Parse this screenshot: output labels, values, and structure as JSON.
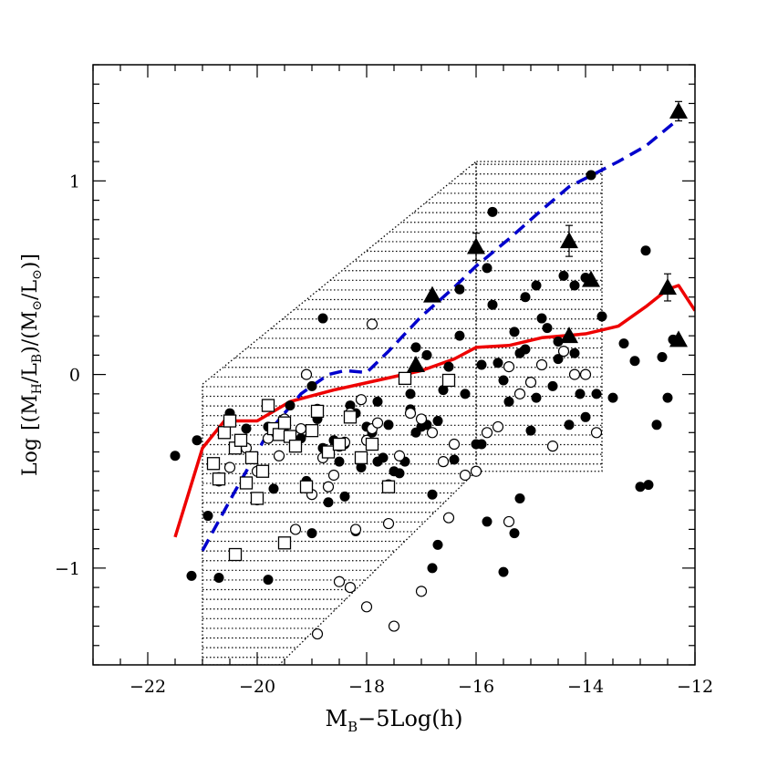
{
  "chart_data": {
    "type": "scatter",
    "xlabel_main": "M",
    "xlabel_sub": "B",
    "xlabel_rest": "−5Log(h)",
    "ylabel_prefix": "Log",
    "ylabel_open": "[(M",
    "ylabel_sub1": "H",
    "ylabel_mid1": "/L",
    "ylabel_sub2": "B",
    "ylabel_mid2": ")/(M",
    "ylabel_sub3": "⊙",
    "ylabel_mid3": "/L",
    "ylabel_sub4": "⊙",
    "ylabel_close": ")]",
    "xlim": [
      -23,
      -12
    ],
    "ylim": [
      -1.5,
      1.6
    ],
    "x_ticks": [
      {
        "v": -22,
        "label": "−22"
      },
      {
        "v": -20,
        "label": "−20"
      },
      {
        "v": -18,
        "label": "−18"
      },
      {
        "v": -16,
        "label": "−16"
      },
      {
        "v": -14,
        "label": "−14"
      },
      {
        "v": -12,
        "label": "−12"
      }
    ],
    "y_ticks": [
      {
        "v": -1,
        "label": "−1"
      },
      {
        "v": 0,
        "label": "0"
      },
      {
        "v": 1,
        "label": "1"
      }
    ],
    "grid": false,
    "colors": {
      "red_line": "#ee0000",
      "blue_dashed": "#0000cc",
      "markers": "#000000"
    },
    "hatched_regions": [
      {
        "kind": "polygon",
        "vertices": [
          [
            -21,
            -1.5
          ],
          [
            -21,
            -0.05
          ],
          [
            -16,
            1.1
          ],
          [
            -16,
            -0.5
          ],
          [
            -19.6,
            -1.5
          ]
        ]
      },
      {
        "kind": "rect",
        "vertices": [
          [
            -16,
            -0.5
          ],
          [
            -16,
            1.1
          ],
          [
            -13.7,
            1.1
          ],
          [
            -13.7,
            -0.5
          ]
        ]
      }
    ],
    "red_line": {
      "x": [
        -21.5,
        -21.0,
        -20.6,
        -20.0,
        -19.4,
        -18.6,
        -17.8,
        -17.0,
        -16.4,
        -16.0,
        -15.4,
        -14.8,
        -14.0,
        -13.4,
        -12.9,
        -12.5,
        -12.3,
        -12.0
      ],
      "y": [
        -0.84,
        -0.38,
        -0.24,
        -0.24,
        -0.14,
        -0.08,
        -0.03,
        0.02,
        0.08,
        0.14,
        0.15,
        0.19,
        0.21,
        0.25,
        0.35,
        0.44,
        0.46,
        0.33
      ]
    },
    "blue_dashed": {
      "x": [
        -21.0,
        -20.4,
        -19.8,
        -19.2,
        -18.7,
        -18.4,
        -18.0,
        -17.6,
        -17.0,
        -16.4,
        -16.0,
        -15.4,
        -14.8,
        -14.3,
        -13.4,
        -12.9,
        -12.3
      ],
      "y": [
        -0.91,
        -0.6,
        -0.3,
        -0.1,
        0.0,
        0.02,
        0.01,
        0.12,
        0.3,
        0.45,
        0.56,
        0.7,
        0.85,
        0.97,
        1.1,
        1.18,
        1.32
      ]
    },
    "series": [
      {
        "marker": "filled-circle",
        "x": [
          -21.5,
          -21.1,
          -20.9,
          -20.7,
          -20.5,
          -20.35,
          -20.2,
          -20.0,
          -19.8,
          -19.7,
          -19.4,
          -19.2,
          -19.1,
          -19.0,
          -18.9,
          -18.8,
          -18.7,
          -18.6,
          -18.5,
          -18.4,
          -18.3,
          -18.2,
          -18.1,
          -18.0,
          -17.9,
          -17.8,
          -17.7,
          -17.6,
          -17.5,
          -17.4,
          -17.3,
          -17.2,
          -17.1,
          -17.0,
          -16.9,
          -16.8,
          -16.7,
          -16.6,
          -16.5,
          -16.4,
          -16.3,
          -16.2,
          -16.0,
          -15.9,
          -15.8,
          -15.7,
          -15.6,
          -15.5,
          -15.4,
          -15.3,
          -15.2,
          -15.1,
          -15.0,
          -14.9,
          -14.8,
          -14.7,
          -14.6,
          -14.5,
          -14.4,
          -14.3,
          -14.2,
          -14.1,
          -14.0,
          -13.9,
          -13.7,
          -13.5,
          -13.3,
          -13.1,
          -12.9,
          -12.7,
          -12.6,
          -12.5,
          -12.4,
          -21.2,
          -20.7,
          -19.8,
          -19.0,
          -18.4,
          -16.8,
          -16.7,
          -15.8,
          -15.5,
          -15.3,
          -15.2,
          -14.0,
          -13.0,
          -12.85,
          -18.8,
          -19.5,
          -17.2,
          -15.7,
          -15.9,
          -16.9,
          -14.5,
          -14.9,
          -18.2,
          -17.8,
          -17.1,
          -16.3,
          -15.1,
          -14.2,
          -13.8
        ],
        "y": [
          -0.42,
          -0.34,
          -0.73,
          -0.53,
          -0.2,
          -0.37,
          -0.28,
          -0.65,
          -0.27,
          -0.59,
          -0.16,
          -0.33,
          -0.55,
          -0.06,
          -0.23,
          -0.38,
          -0.66,
          -0.34,
          -0.45,
          -0.36,
          -0.16,
          -0.81,
          -0.48,
          -0.27,
          -0.3,
          -0.45,
          -0.43,
          -0.26,
          -0.5,
          -0.51,
          -0.45,
          -0.1,
          0.14,
          -0.27,
          -0.26,
          -0.62,
          -0.24,
          -0.08,
          0.04,
          -0.44,
          0.44,
          -0.1,
          -0.36,
          0.05,
          0.55,
          0.84,
          0.06,
          -0.03,
          -0.14,
          0.22,
          0.11,
          0.4,
          -0.29,
          0.46,
          0.29,
          0.24,
          -0.06,
          0.17,
          0.51,
          -0.26,
          0.46,
          -0.1,
          0.5,
          1.03,
          0.3,
          -0.12,
          0.16,
          0.07,
          0.64,
          -0.26,
          0.09,
          -0.12,
          0.18,
          -1.04,
          -1.05,
          -1.06,
          -0.82,
          -0.63,
          -1.0,
          -0.88,
          -0.76,
          -1.02,
          -0.82,
          -0.64,
          -0.22,
          -0.58,
          -0.57,
          0.29,
          -0.3,
          -0.18,
          0.36,
          -0.36,
          0.1,
          0.08,
          -0.12,
          -0.2,
          -0.14,
          -0.3,
          0.2,
          0.13,
          0.11,
          -0.1
        ],
        "err_y": []
      },
      {
        "marker": "open-circle",
        "x": [
          -20.7,
          -20.5,
          -20.2,
          -20.0,
          -19.8,
          -19.6,
          -19.5,
          -19.3,
          -19.2,
          -19.1,
          -19.0,
          -18.9,
          -18.8,
          -18.7,
          -18.6,
          -18.5,
          -18.4,
          -18.3,
          -18.2,
          -18.1,
          -18.0,
          -17.9,
          -17.8,
          -17.6,
          -17.4,
          -17.2,
          -17.0,
          -16.8,
          -16.6,
          -16.4,
          -16.2,
          -16.0,
          -15.8,
          -15.6,
          -15.4,
          -15.2,
          -15.0,
          -14.8,
          -14.6,
          -14.4,
          -14.2,
          -14.0,
          -13.8,
          -18.9,
          -19.3,
          -18.5,
          -18.3,
          -18.0,
          -17.9,
          -17.6,
          -17.0,
          -16.5,
          -15.4,
          -17.5
        ],
        "y": [
          -0.55,
          -0.48,
          -0.38,
          -0.5,
          -0.33,
          -0.42,
          -0.23,
          -0.36,
          -0.28,
          0.0,
          -0.62,
          -0.18,
          -0.43,
          -0.58,
          -0.52,
          -0.37,
          -0.35,
          -0.2,
          -0.8,
          -0.13,
          -0.34,
          -0.28,
          -0.25,
          -0.57,
          -0.42,
          -0.2,
          -0.23,
          -0.3,
          -0.45,
          -0.36,
          -0.52,
          -0.5,
          -0.3,
          -0.27,
          0.04,
          -0.1,
          -0.04,
          0.05,
          -0.37,
          0.12,
          0.0,
          0.0,
          -0.3,
          -1.34,
          -0.8,
          -1.07,
          -1.1,
          -1.2,
          0.26,
          -0.77,
          -1.12,
          -0.74,
          -0.76,
          -1.3
        ],
        "err_y": []
      },
      {
        "marker": "open-square",
        "x": [
          -20.8,
          -20.7,
          -20.6,
          -20.5,
          -20.4,
          -20.3,
          -20.2,
          -20.1,
          -20.0,
          -19.9,
          -19.8,
          -19.7,
          -19.6,
          -19.5,
          -19.4,
          -19.3,
          -19.1,
          -19.0,
          -18.9,
          -18.7,
          -18.5,
          -18.3,
          -18.1,
          -17.9,
          -17.6,
          -17.3,
          -16.5,
          -19.5,
          -20.4
        ],
        "y": [
          -0.46,
          -0.54,
          -0.3,
          -0.24,
          -0.38,
          -0.34,
          -0.56,
          -0.43,
          -0.64,
          -0.5,
          -0.16,
          -0.28,
          -0.31,
          -0.25,
          -0.32,
          -0.37,
          -0.58,
          -0.29,
          -0.19,
          -0.4,
          -0.36,
          -0.22,
          -0.43,
          -0.36,
          -0.58,
          -0.02,
          -0.03,
          -0.87,
          -0.93
        ],
        "err_y": []
      },
      {
        "marker": "filled-triangle",
        "x": [
          -17.1,
          -16.8,
          -16.0,
          -14.3,
          -14.3,
          -13.9,
          -12.5,
          -12.3,
          -12.3
        ],
        "y": [
          0.05,
          0.41,
          0.66,
          0.69,
          0.2,
          0.49,
          0.45,
          0.18,
          1.36
        ],
        "err_y": [
          0,
          0,
          0.07,
          0.08,
          0,
          0,
          0.07,
          0,
          0.05
        ]
      }
    ]
  }
}
